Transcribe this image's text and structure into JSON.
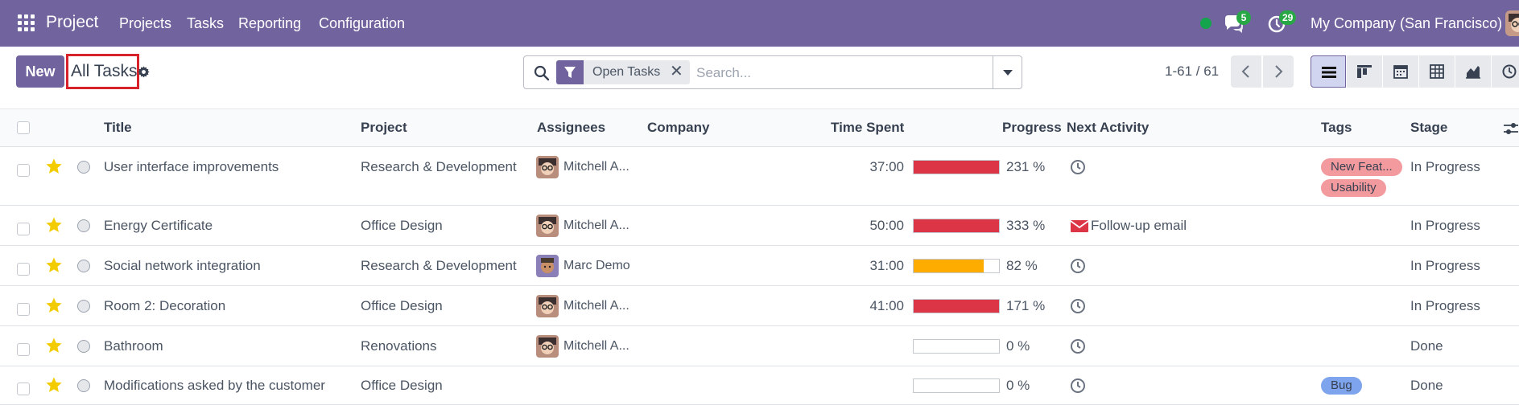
{
  "app": {
    "brand": "Project",
    "menu": [
      "Projects",
      "Tasks",
      "Reporting",
      "Configuration"
    ],
    "messages_count": "5",
    "activities_count": "29",
    "company": "My Company (San Francisco)",
    "online_status_color": "#14a44d"
  },
  "control": {
    "new_label": "New",
    "view_title": "All Tasks",
    "search": {
      "facet": "Open Tasks",
      "facet_remove": "✕",
      "placeholder": "Search..."
    },
    "pager": "1-61 / 61",
    "views": [
      "list-view",
      "kanban-view",
      "calendar-view",
      "pivot-view",
      "graph-view",
      "activity-view"
    ]
  },
  "table": {
    "columns": [
      "Title",
      "Project",
      "Assignees",
      "Company",
      "Time Spent",
      "Progress",
      "Next Activity",
      "Tags",
      "Stage"
    ],
    "rows": [
      {
        "title": "User interface improvements",
        "project": "Research & Development",
        "assignee": "Mitchell A...",
        "time_spent": "37:00",
        "progress_label": "231 %",
        "progress": 231,
        "activity": "",
        "tags": [
          "New Feat...",
          "Usability"
        ],
        "stage": "In Progress"
      },
      {
        "title": "Energy Certificate",
        "project": "Office Design",
        "assignee": "Mitchell A...",
        "time_spent": "50:00",
        "progress_label": "333 %",
        "progress": 333,
        "activity": "Follow-up email",
        "tags": [],
        "stage": "In Progress"
      },
      {
        "title": "Social network integration",
        "project": "Research & Development",
        "assignee": "Marc Demo",
        "time_spent": "31:00",
        "progress_label": "82 %",
        "progress": 82,
        "activity": "",
        "tags": [],
        "stage": "In Progress"
      },
      {
        "title": "Room 2: Decoration",
        "project": "Office Design",
        "assignee": "Mitchell A...",
        "time_spent": "41:00",
        "progress_label": "171 %",
        "progress": 171,
        "activity": "",
        "tags": [],
        "stage": "In Progress"
      },
      {
        "title": "Bathroom",
        "project": "Renovations",
        "assignee": "Mitchell A...",
        "time_spent": "",
        "progress_label": "0 %",
        "progress": 0,
        "activity": "",
        "tags": [],
        "stage": "Done"
      },
      {
        "title": "Modifications asked by the customer",
        "project": "Office Design",
        "assignee": "",
        "time_spent": "",
        "progress_label": "0 %",
        "progress": 0,
        "activity": "",
        "tags": [
          "Bug"
        ],
        "stage": "Done"
      }
    ]
  },
  "colors": {
    "brand": "#71639e",
    "progress_over": "#dc3545",
    "progress_warn": "#ffac00",
    "star": "#f3cc00",
    "tag_new_feature": "#f39a9e",
    "tag_usability": "#f39a9e",
    "tag_bug": "#7ea4ed",
    "email_icon": "#dc3545"
  }
}
